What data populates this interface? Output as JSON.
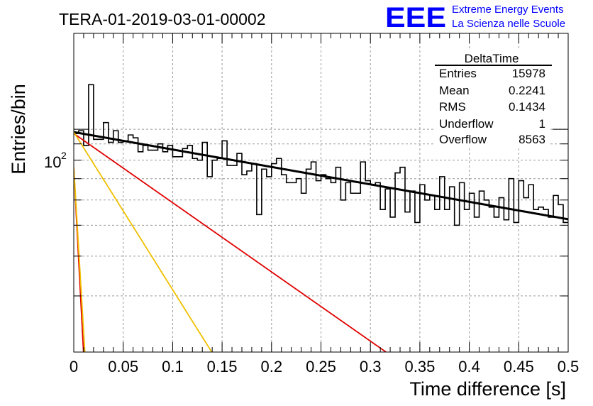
{
  "run_title": "TERA-01-2019-03-01-00002",
  "logo": {
    "mark": "EEE",
    "line1": "Extreme Energy Events",
    "line2": "La Scienza nelle Scuole",
    "color": "#0000ff"
  },
  "stats": {
    "title": "DeltaTime",
    "rows": [
      {
        "label": "Entries",
        "value": "15978"
      },
      {
        "label": "Mean",
        "value": "0.2241"
      },
      {
        "label": "RMS",
        "value": "0.1434"
      },
      {
        "label": "Underflow",
        "value": "1"
      },
      {
        "label": "Overflow",
        "value": "8563"
      }
    ]
  },
  "chart_data": {
    "type": "line",
    "xlabel": "Time difference [s]",
    "ylabel": "Entries/bin",
    "xlim": [
      0,
      0.5
    ],
    "ylim": [
      20,
      200
    ],
    "y_scale": "log",
    "grid": true,
    "x_ticks": [
      "0",
      "0.05",
      "0.1",
      "0.15",
      "0.2",
      "0.25",
      "0.3",
      "0.35",
      "0.4",
      "0.45",
      "0.5"
    ],
    "y_tick_label": {
      "base": "10",
      "exp": "2",
      "value": 100
    },
    "histogram": {
      "bin_width": 0.005,
      "color": "#000000",
      "values": [
        97,
        99,
        89,
        138,
        93,
        93,
        105,
        91,
        99,
        91,
        92,
        96,
        94,
        85,
        89,
        86,
        86,
        90,
        85,
        89,
        82,
        82,
        87,
        89,
        81,
        80,
        91,
        71,
        80,
        81,
        92,
        77,
        77,
        84,
        72,
        74,
        78,
        54,
        75,
        71,
        78,
        81,
        72,
        68,
        68,
        70,
        63,
        75,
        79,
        69,
        72,
        70,
        68,
        76,
        60,
        68,
        63,
        63,
        79,
        69,
        67,
        68,
        56,
        65,
        53,
        73,
        76,
        55,
        64,
        51,
        67,
        60,
        62,
        56,
        71,
        56,
        66,
        50,
        68,
        56,
        63,
        53,
        64,
        60,
        57,
        53,
        61,
        52,
        70,
        51,
        69,
        61,
        67,
        56,
        57,
        56,
        53,
        62,
        58,
        51
      ]
    },
    "fits": [
      {
        "color": "#000000",
        "a": 98,
        "tau": 0.794
      },
      {
        "color": "#e00000",
        "a": 97,
        "tau": 0.2
      },
      {
        "color": "#f0c000",
        "a": 98,
        "tau": 0.0878
      },
      {
        "color": "#e00000",
        "a": 76,
        "tau": 0.00738
      },
      {
        "color": "#f0c000",
        "a": 76,
        "tau": 0.0084
      }
    ]
  }
}
